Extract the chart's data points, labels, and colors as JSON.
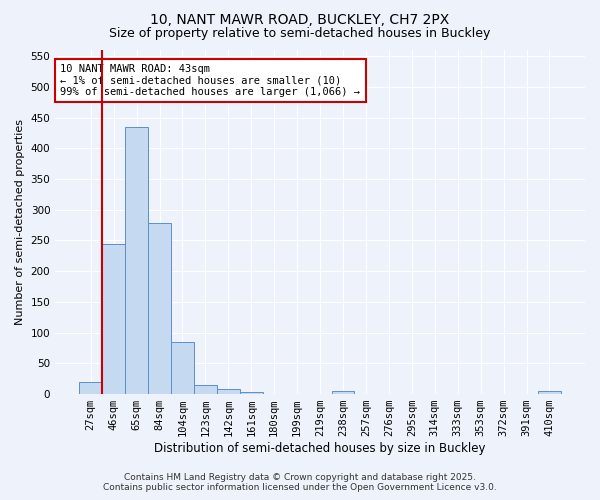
{
  "title_line1": "10, NANT MAWR ROAD, BUCKLEY, CH7 2PX",
  "title_line2": "Size of property relative to semi-detached houses in Buckley",
  "xlabel": "Distribution of semi-detached houses by size in Buckley",
  "ylabel": "Number of semi-detached properties",
  "categories": [
    "27sqm",
    "46sqm",
    "65sqm",
    "84sqm",
    "104sqm",
    "123sqm",
    "142sqm",
    "161sqm",
    "180sqm",
    "199sqm",
    "219sqm",
    "238sqm",
    "257sqm",
    "276sqm",
    "295sqm",
    "314sqm",
    "333sqm",
    "353sqm",
    "372sqm",
    "391sqm",
    "410sqm"
  ],
  "values": [
    20,
    245,
    435,
    278,
    85,
    14,
    8,
    4,
    0,
    0,
    0,
    5,
    0,
    0,
    0,
    0,
    0,
    0,
    0,
    0,
    5
  ],
  "bar_color": "#c5d9f1",
  "bar_edge_color": "#5b8fcc",
  "background_color": "#eef2fa",
  "grid_color": "#ffffff",
  "annotation_text": "10 NANT MAWR ROAD: 43sqm\n← 1% of semi-detached houses are smaller (10)\n99% of semi-detached houses are larger (1,066) →",
  "vline_x": 0.5,
  "vline_color": "#cc0000",
  "ylim": [
    0,
    560
  ],
  "yticks": [
    0,
    50,
    100,
    150,
    200,
    250,
    300,
    350,
    400,
    450,
    500,
    550
  ],
  "footer_line1": "Contains HM Land Registry data © Crown copyright and database right 2025.",
  "footer_line2": "Contains public sector information licensed under the Open Government Licence v3.0.",
  "title1_fontsize": 10,
  "title2_fontsize": 9,
  "ylabel_fontsize": 8,
  "xlabel_fontsize": 8.5,
  "tick_fontsize": 7.5,
  "footer_fontsize": 6.5,
  "ann_fontsize": 7.5
}
